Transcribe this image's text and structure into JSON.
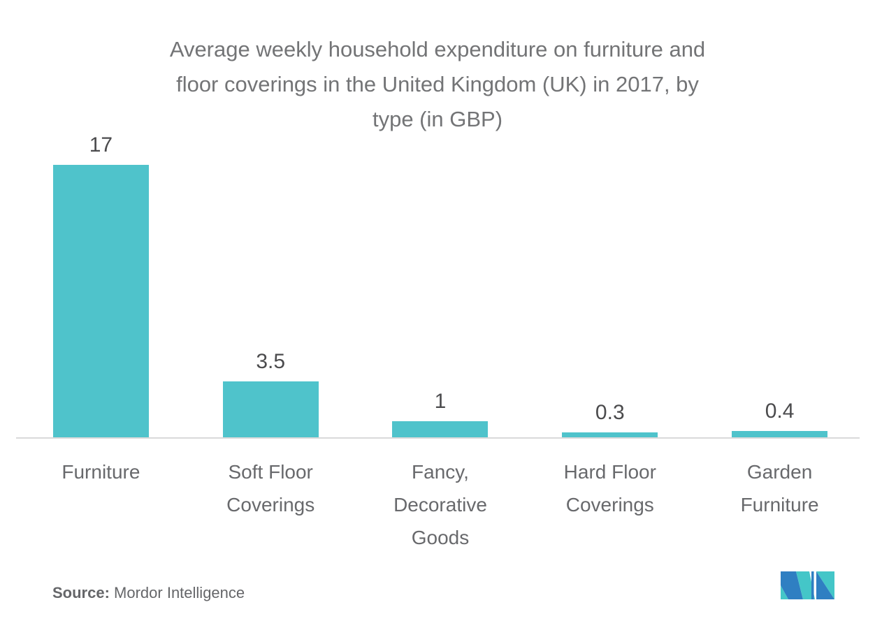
{
  "title": {
    "lines": [
      "Average weekly household expenditure on furniture and",
      "floor coverings in the United Kingdom (UK) in 2017, by",
      "type (in GBP)"
    ]
  },
  "chart_data": {
    "type": "bar",
    "title": "Average weekly household expenditure on furniture and floor coverings in the United Kingdom (UK) in 2017, by type (in GBP)",
    "categories": [
      "Furniture",
      "Soft Floor Coverings",
      "Fancy, Decorative Goods",
      "Hard Floor Coverings",
      "Garden Furniture"
    ],
    "category_label_lines": [
      [
        "Furniture"
      ],
      [
        "Soft Floor",
        "Coverings"
      ],
      [
        "Fancy,",
        "Decorative",
        "Goods"
      ],
      [
        "Hard Floor",
        "Coverings"
      ],
      [
        "Garden",
        "Furniture"
      ]
    ],
    "values": [
      17,
      3.5,
      1,
      0.3,
      0.4
    ],
    "value_labels": [
      "17",
      "3.5",
      "1",
      "0.3",
      "0.4"
    ],
    "unit": "GBP",
    "xlabel": "",
    "ylabel": "",
    "ylim": [
      0,
      17
    ],
    "grid": false,
    "legend": "none",
    "bar_color": "#4fc3cb",
    "axis_line_color": "#d9d9da",
    "value_label_color": "#4b4b4d",
    "category_label_color": "#68696c",
    "title_color": "#737476"
  },
  "footer": {
    "source_label": "Source:",
    "source_value": " Mordor Intelligence",
    "logo": {
      "name": "mordor-intelligence-logo",
      "blue": "#2f7fc2",
      "teal": "#44c6c8"
    }
  }
}
